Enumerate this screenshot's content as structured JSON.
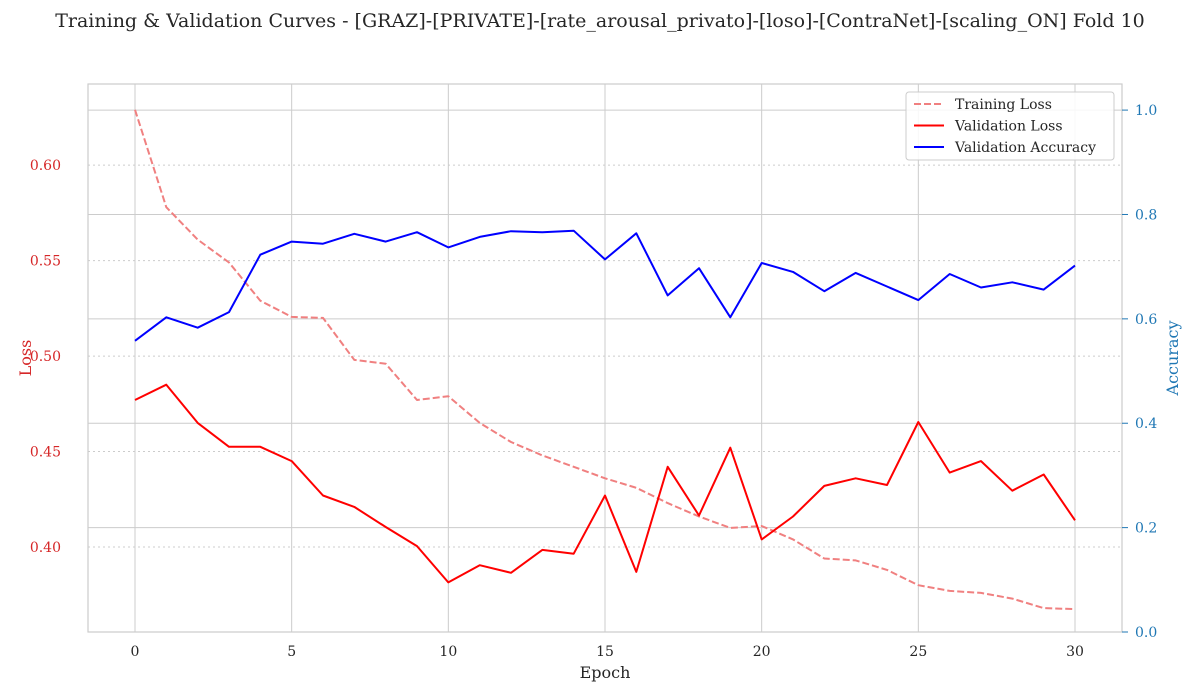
{
  "chart_data": {
    "type": "line",
    "title": "Training & Validation Curves - [GRAZ]-[PRIVATE]-[rate_arousal_privato]-[loso]-[ContraNet]-[scaling_ON] Fold 10",
    "xlabel": "Epoch",
    "ylabel_left": "Loss",
    "ylabel_right": "Accuracy",
    "x": [
      0,
      1,
      2,
      3,
      4,
      5,
      6,
      7,
      8,
      9,
      10,
      11,
      12,
      13,
      14,
      15,
      16,
      17,
      18,
      19,
      20,
      21,
      22,
      23,
      24,
      25,
      26,
      27,
      28,
      29,
      30
    ],
    "xlim": [
      -1.5,
      31.5
    ],
    "xticks": [
      0,
      5,
      10,
      15,
      20,
      25,
      30
    ],
    "ylim_left": [
      0.3555,
      0.6425
    ],
    "yticks_left": [
      0.4,
      0.45,
      0.5,
      0.55,
      0.6
    ],
    "ylim_right": [
      0.0,
      1.05
    ],
    "yticks_right": [
      0.0,
      0.2,
      0.4,
      0.6,
      0.8,
      1.0
    ],
    "legend_position": "top-right",
    "grid": true,
    "series": [
      {
        "name": "Training Loss",
        "axis": "left",
        "color": "#f08080",
        "style": "dashed",
        "values": [
          0.629,
          0.578,
          0.561,
          0.549,
          0.529,
          0.5205,
          0.52,
          0.498,
          0.496,
          0.477,
          0.479,
          0.465,
          0.455,
          0.448,
          0.442,
          0.436,
          0.431,
          0.423,
          0.416,
          0.41,
          0.411,
          0.404,
          0.394,
          0.393,
          0.388,
          0.38,
          0.377,
          0.376,
          0.373,
          0.368,
          0.3675
        ]
      },
      {
        "name": "Validation Loss",
        "axis": "left",
        "color": "#ff0000",
        "style": "solid",
        "values": [
          0.477,
          0.485,
          0.465,
          0.4525,
          0.4525,
          0.445,
          0.427,
          0.421,
          0.4105,
          0.4005,
          0.3815,
          0.3905,
          0.3865,
          0.3985,
          0.3965,
          0.427,
          0.387,
          0.442,
          0.4165,
          0.452,
          0.404,
          0.416,
          0.432,
          0.436,
          0.4325,
          0.4655,
          0.439,
          0.445,
          0.4295,
          0.438,
          0.414
        ]
      },
      {
        "name": "Validation Accuracy",
        "axis": "right",
        "color": "#0000ff",
        "style": "solid",
        "values": [
          0.558,
          0.603,
          0.583,
          0.613,
          0.723,
          0.748,
          0.744,
          0.763,
          0.748,
          0.766,
          0.737,
          0.757,
          0.768,
          0.766,
          0.769,
          0.714,
          0.764,
          0.645,
          0.697,
          0.603,
          0.707,
          0.69,
          0.653,
          0.688,
          0.662,
          0.636,
          0.686,
          0.66,
          0.67,
          0.656,
          0.702
        ]
      }
    ],
    "colors": {
      "left_axis": "#d62728",
      "right_axis": "#1f77b4",
      "text": "#262626",
      "grid": "#cccccc"
    }
  }
}
